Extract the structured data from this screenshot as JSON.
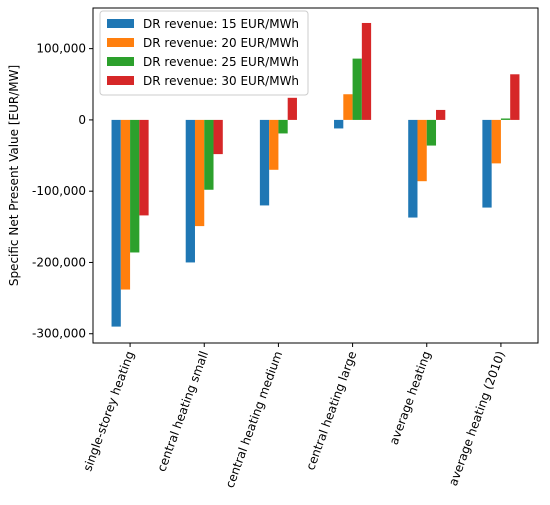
{
  "chart_data": {
    "type": "bar",
    "title": "",
    "xlabel": "",
    "ylabel": "Specific Net Present Value [EUR/MW]",
    "categories": [
      "single-storey heating",
      "central heating small",
      "central heating medium",
      "central heating large",
      "average heating",
      "average heating (2010)"
    ],
    "series": [
      {
        "name": "DR revenue: 15 EUR/MWh",
        "color": "#1f77b4",
        "values": [
          -290000,
          -200000,
          -120000,
          -12000,
          -137000,
          -123000
        ]
      },
      {
        "name": "DR revenue: 20 EUR/MWh",
        "color": "#ff7f0e",
        "values": [
          -238000,
          -149000,
          -70000,
          36000,
          -86000,
          -61000
        ]
      },
      {
        "name": "DR revenue: 25 EUR/MWh",
        "color": "#2ca02c",
        "values": [
          -186000,
          -98000,
          -19000,
          86000,
          -36000,
          2000
        ]
      },
      {
        "name": "DR revenue: 30 EUR/MWh",
        "color": "#d62728",
        "values": [
          -134000,
          -48000,
          31000,
          136000,
          14000,
          64000
        ]
      }
    ],
    "yticks": [
      -300000,
      -200000,
      -100000,
      0,
      100000
    ],
    "ytick_labels": [
      "-300,000",
      "-200,000",
      "-100,000",
      "0",
      "100,000"
    ],
    "ylim": [
      -313000,
      157000
    ],
    "grid": false,
    "legend_position": "top-left"
  }
}
